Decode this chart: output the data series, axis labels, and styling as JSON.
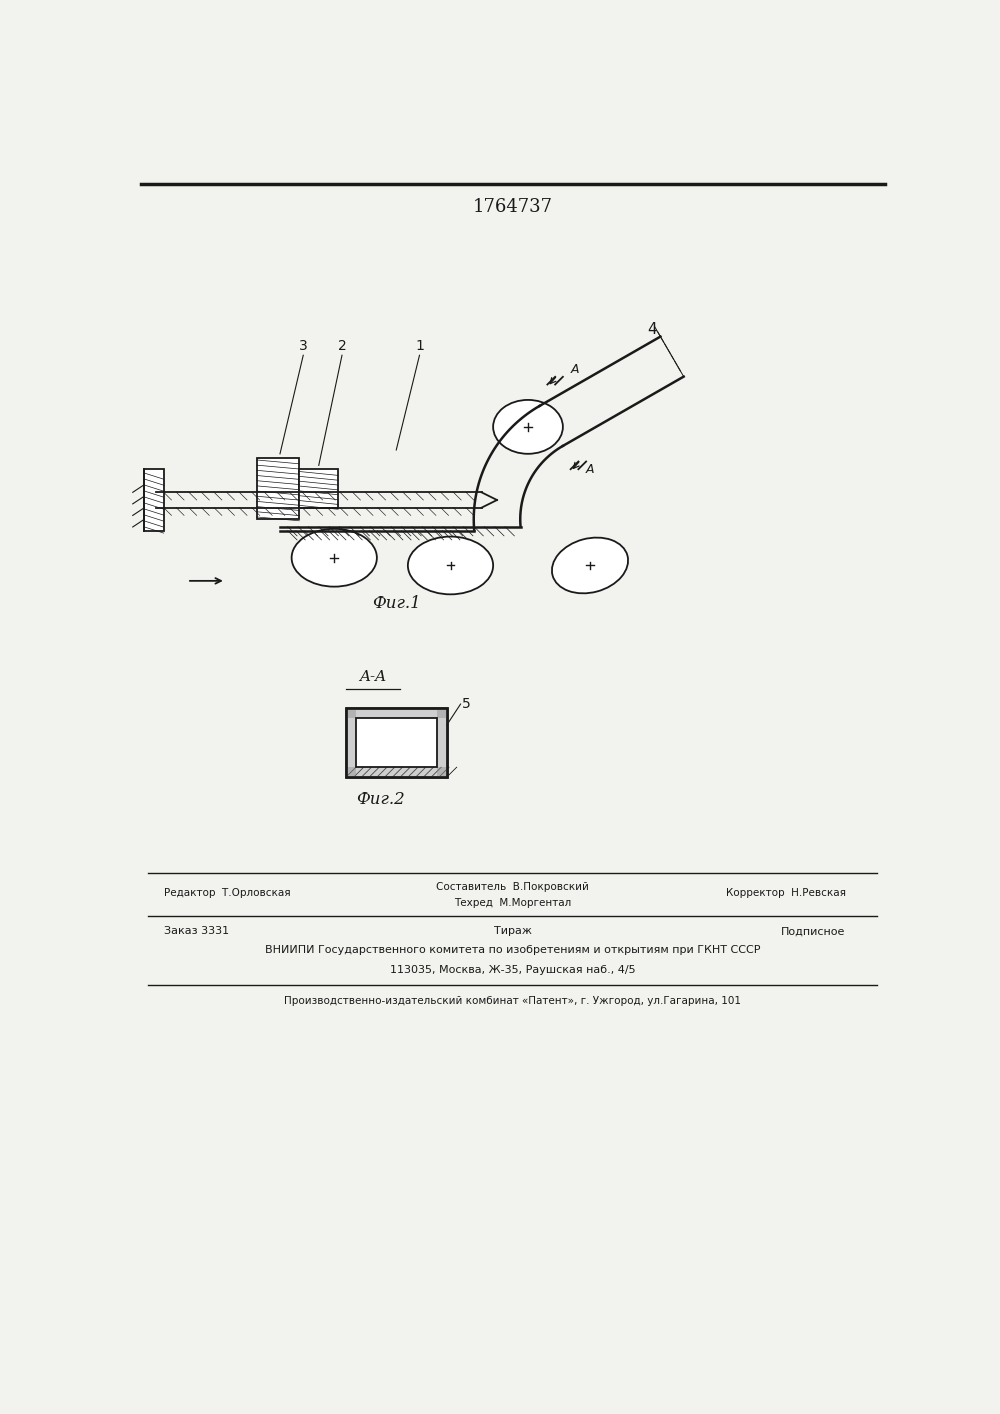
{
  "patent_number": "1764737",
  "fig1_label": "Фиг.1",
  "fig2_label": "Фиг.2",
  "section_label": "A-A",
  "label_5": "5",
  "label_4": "4",
  "label_3": "3",
  "label_2": "2",
  "label_1": "1",
  "label_A_upper": "A",
  "label_A_lower": "A",
  "footer_editor": "Редактор  Т.Орловская",
  "footer_composer": "Составитель  В.Покровский",
  "footer_techred": "Техред  М.Моргентал",
  "footer_corrector": "Корректор  Н.Ревская",
  "footer_order": "Заказ 3331",
  "footer_tirazh": "Тираж",
  "footer_podpisnoe": "Подписное",
  "footer_vniipи": "ВНИИПИ Государственного комитета по изобретениям и открытиям при ГКНТ СССР",
  "footer_address": "113035, Москва, Ж-35, Раушская наб., 4/5",
  "footer_production": "Производственно-издательский комбинат «Патент», г. Ужгород, ул.Гагарина, 101",
  "bg_color": "#f2f2ee",
  "line_color": "#1a1a1a"
}
